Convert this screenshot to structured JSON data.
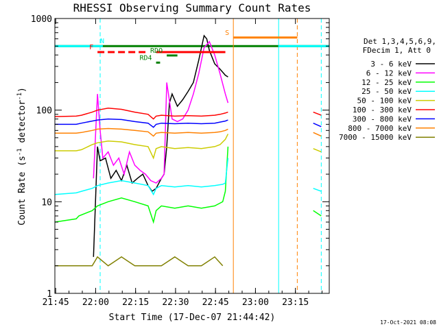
{
  "chart_data": {
    "type": "line",
    "title": "RHESSI Observing Summary Count Rates",
    "xlabel": "Start Time (17-Dec-07 21:44:42)",
    "ylabel_main": "Count Rate (s",
    "ylabel_sup1": "-1",
    "ylabel_mid": " detector",
    "ylabel_sup2": "-1",
    "ylabel_end": ")",
    "y_scale": "log",
    "ylim": [
      1,
      1000
    ],
    "x_tick_labels": [
      "21:45",
      "22:00",
      "22:15",
      "22:30",
      "22:45",
      "23:00",
      "23:15"
    ],
    "x_tick_minutes": [
      0.3,
      15.3,
      30.3,
      45.3,
      60.3,
      75.3,
      90.3
    ],
    "xlim_minutes": [
      0,
      103
    ],
    "y_tick_labels": [
      "1",
      "10",
      "100",
      "1000"
    ],
    "y_tick_values": [
      1,
      10,
      100,
      1000
    ],
    "legend_header": [
      "Det 1,3,4,5,6,9,",
      "FDecim 1, Att 0"
    ],
    "legend_position": "right",
    "series": [
      {
        "name": "3 - 6 keV",
        "color": "#000000",
        "x": [
          0,
          14,
          14.5,
          16,
          17,
          19,
          21,
          23,
          25,
          27,
          29,
          31,
          33,
          35,
          36.5,
          38,
          40,
          41,
          42,
          43,
          44,
          46,
          48,
          50,
          52,
          54,
          56,
          57,
          58,
          60,
          62,
          64,
          65
        ],
        "y": [
          null,
          null,
          2.5,
          40,
          28,
          30,
          18,
          22,
          17,
          25,
          16,
          18,
          20,
          15,
          13,
          14,
          18,
          20,
          40,
          120,
          150,
          110,
          130,
          160,
          200,
          350,
          650,
          600,
          450,
          320,
          280,
          240,
          230
        ]
      },
      {
        "name": "6 - 12 keV",
        "color": "#ff00ff",
        "x": [
          0,
          14,
          14.5,
          16,
          17,
          18,
          20,
          22,
          24,
          26,
          28,
          30,
          32,
          34,
          36,
          38,
          40,
          41,
          42,
          44,
          46,
          48,
          50,
          52,
          54,
          56,
          58,
          60,
          62,
          64,
          65
        ],
        "y": [
          null,
          null,
          18,
          150,
          60,
          30,
          35,
          25,
          30,
          20,
          35,
          25,
          22,
          20,
          17,
          16,
          18,
          20,
          200,
          80,
          75,
          80,
          100,
          150,
          250,
          480,
          560,
          400,
          250,
          150,
          120
        ]
      },
      {
        "name": "12 - 25 keV",
        "color": "#00ff00",
        "x": [
          0,
          8,
          9,
          14,
          16,
          20,
          25,
          30,
          35,
          37,
          38,
          40,
          45,
          50,
          55,
          60,
          63,
          64,
          65
        ],
        "y": [
          6,
          6.5,
          7,
          8,
          9,
          10,
          11,
          10,
          9,
          6,
          8,
          9,
          8.5,
          9,
          8.5,
          9,
          10,
          13,
          40
        ]
      },
      {
        "name": "25 - 50 keV",
        "color": "#00ffff",
        "x": [
          0,
          8,
          10,
          14,
          16,
          20,
          25,
          30,
          35,
          37,
          38,
          40,
          45,
          50,
          55,
          60,
          63,
          64,
          65
        ],
        "y": [
          12,
          12.5,
          13,
          14,
          15,
          16,
          17,
          16,
          15,
          12,
          14,
          15,
          14.5,
          15,
          14.5,
          15,
          15.5,
          16,
          30
        ]
      },
      {
        "name": "50 - 100 keV",
        "color": "#cccc00",
        "x": [
          0,
          8,
          10,
          14,
          16,
          20,
          25,
          30,
          35,
          37,
          38,
          40,
          45,
          50,
          55,
          60,
          62,
          64,
          65
        ],
        "y": [
          36,
          36,
          37,
          42,
          44,
          46,
          45,
          42,
          40,
          30,
          38,
          40,
          38,
          39,
          38,
          40,
          42,
          48,
          55
        ]
      },
      {
        "name": "100 - 300 keV",
        "color": "#ff0000",
        "x": [
          0,
          8,
          10,
          14,
          16,
          20,
          25,
          30,
          35,
          37,
          38,
          40,
          45,
          50,
          55,
          60,
          62,
          64,
          65
        ],
        "y": [
          85,
          86,
          88,
          95,
          100,
          105,
          102,
          95,
          90,
          80,
          86,
          88,
          86,
          87,
          86,
          88,
          90,
          93,
          95
        ]
      },
      {
        "name": "300 - 800 keV",
        "color": "#0000ff",
        "x": [
          0,
          8,
          10,
          14,
          16,
          20,
          25,
          30,
          35,
          37,
          38,
          40,
          45,
          50,
          55,
          60,
          62,
          64,
          65
        ],
        "y": [
          70,
          70,
          72,
          76,
          78,
          80,
          79,
          75,
          72,
          65,
          70,
          72,
          71,
          72,
          71,
          72,
          74,
          76,
          78
        ]
      },
      {
        "name": "800 - 7000 keV",
        "color": "#ff8000",
        "x": [
          0,
          8,
          10,
          14,
          16,
          20,
          25,
          30,
          35,
          37,
          38,
          40,
          45,
          50,
          55,
          60,
          62,
          64,
          65
        ],
        "y": [
          56,
          56,
          57,
          60,
          62,
          63,
          62,
          60,
          58,
          52,
          56,
          57,
          56,
          57,
          56,
          57,
          58,
          60,
          62
        ]
      },
      {
        "name": "7000 - 15000 keV",
        "color": "#808000",
        "x": [
          0,
          10,
          14,
          16,
          20,
          25,
          30,
          35,
          40,
          45,
          50,
          55,
          60,
          63
        ],
        "y": [
          2,
          2,
          2,
          2.5,
          2,
          2.5,
          2,
          2,
          2,
          2.5,
          2,
          2,
          2.5,
          2
        ]
      }
    ],
    "right_segment_series": [
      {
        "color": "#ff0000",
        "x": [
          97,
          100
        ],
        "y": [
          95,
          88
        ]
      },
      {
        "color": "#0000ff",
        "x": [
          97,
          100
        ],
        "y": [
          72,
          66
        ]
      },
      {
        "color": "#ff8000",
        "x": [
          97,
          100
        ],
        "y": [
          57,
          52
        ]
      },
      {
        "color": "#cccc00",
        "x": [
          97,
          100
        ],
        "y": [
          38,
          35
        ]
      },
      {
        "color": "#00ffff",
        "x": [
          97,
          100
        ],
        "y": [
          14,
          13
        ]
      },
      {
        "color": "#00ff00",
        "x": [
          97,
          100
        ],
        "y": [
          8,
          7
        ]
      }
    ],
    "annotation_bars": [
      {
        "label": "N",
        "color": "#00ffff",
        "x0": 0,
        "x1": 18,
        "y": 500,
        "dashed": false
      },
      {
        "label": "",
        "color": "#00ffff",
        "x0": 84,
        "x1": 103,
        "y": 500,
        "dashed": false
      },
      {
        "label": "S",
        "color": "#ff8000",
        "x0": 67,
        "x1": 91,
        "y": 620,
        "dashed": false
      },
      {
        "label": "F",
        "color": "#ff0000",
        "x0": 16,
        "x1": 34,
        "y": 430,
        "dashed": true
      },
      {
        "label": "",
        "color": "#ff0000",
        "x0": 38,
        "x1": 64,
        "y": 430,
        "dashed": false
      },
      {
        "label": "RDO",
        "color": "#008000",
        "x0": 42,
        "x1": 46,
        "y": 395,
        "dashed": false
      },
      {
        "label": "RD4",
        "color": "#008000",
        "x0": 38,
        "x1": 39.5,
        "y": 330,
        "dashed": false
      }
    ],
    "green_line_y": 500,
    "vlines": [
      {
        "color": "#00ffff",
        "x": 17,
        "dashed": true
      },
      {
        "color": "#ff8000",
        "x": 67,
        "dashed": false
      },
      {
        "color": "#00ffff",
        "x": 84,
        "dashed": false
      },
      {
        "color": "#ff8000",
        "x": 91,
        "dashed": true
      },
      {
        "color": "#00ffff",
        "x": 100,
        "dashed": true
      }
    ],
    "timestamp": "17-Oct-2021 08:08"
  }
}
